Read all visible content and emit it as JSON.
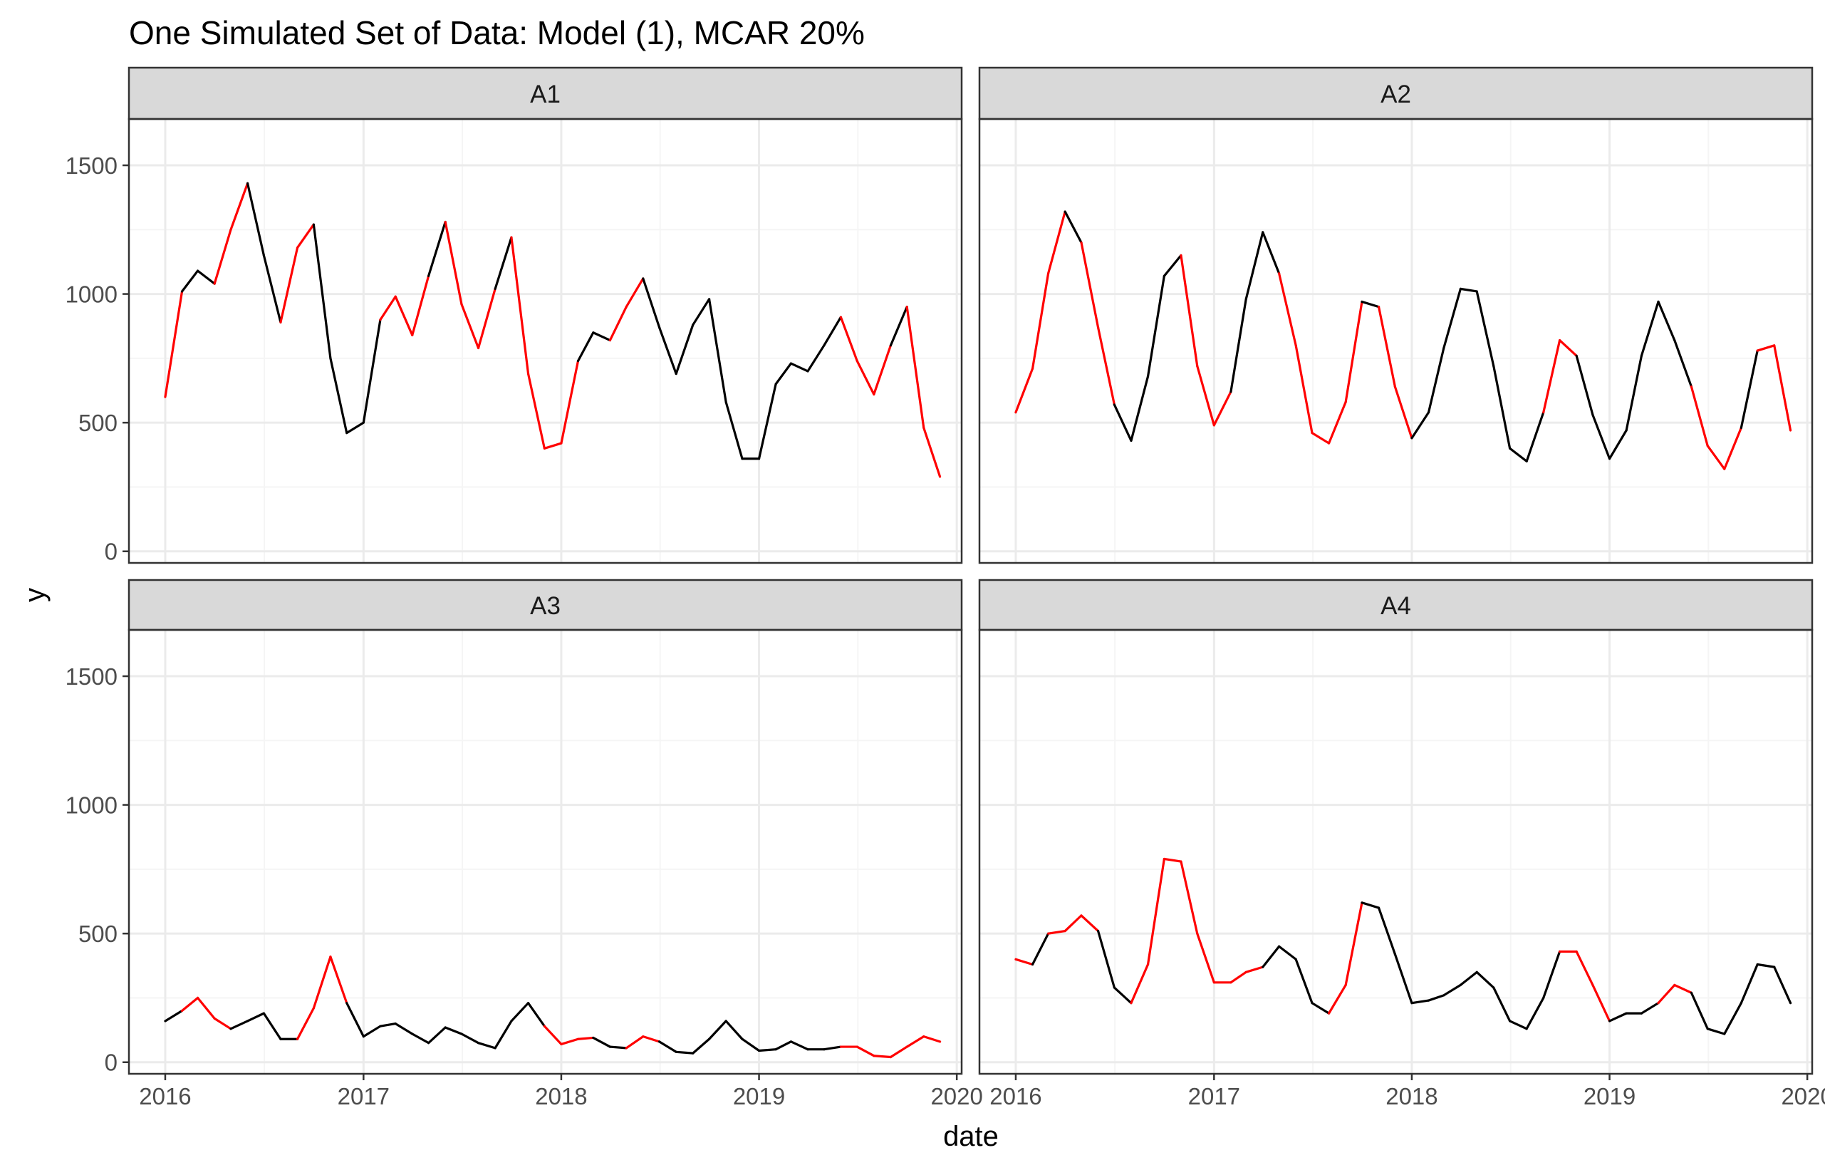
{
  "chart_data": {
    "type": "line",
    "title": "One Simulated Set of Data: Model (1), MCAR 20%",
    "xlabel": "date",
    "ylabel": "y",
    "x_ticks": [
      "2016",
      "2017",
      "2018",
      "2019",
      "2020"
    ],
    "y_ticks": [
      "0",
      "500",
      "1000",
      "1500"
    ],
    "ylim": [
      -45,
      1680
    ],
    "xlim": [
      "2015-10-26",
      "2020-01-10"
    ],
    "grid": true,
    "facet_layout": "2x2",
    "colors": {
      "observed": "#000000",
      "imputed": "#ff0000",
      "strip": "#d9d9d9",
      "grid_major": "#ebebeb",
      "grid_minor": "#f5f5f5"
    },
    "x": [
      "2016-01",
      "2016-02",
      "2016-03",
      "2016-04",
      "2016-05",
      "2016-06",
      "2016-07",
      "2016-08",
      "2016-09",
      "2016-10",
      "2016-11",
      "2016-12",
      "2017-01",
      "2017-02",
      "2017-03",
      "2017-04",
      "2017-05",
      "2017-06",
      "2017-07",
      "2017-08",
      "2017-09",
      "2017-10",
      "2017-11",
      "2017-12",
      "2018-01",
      "2018-02",
      "2018-03",
      "2018-04",
      "2018-05",
      "2018-06",
      "2018-07",
      "2018-08",
      "2018-09",
      "2018-10",
      "2018-11",
      "2018-12",
      "2019-01",
      "2019-02",
      "2019-03",
      "2019-04",
      "2019-05",
      "2019-06",
      "2019-07",
      "2019-08",
      "2019-09",
      "2019-10",
      "2019-11",
      "2019-12"
    ],
    "panels": [
      {
        "name": "A1",
        "values": [
          600,
          1010,
          1090,
          1040,
          1250,
          1430,
          1150,
          890,
          1180,
          1270,
          750,
          460,
          500,
          900,
          990,
          840,
          1070,
          1280,
          960,
          790,
          1020,
          1220,
          690,
          400,
          420,
          740,
          850,
          820,
          950,
          1060,
          870,
          690,
          880,
          980,
          580,
          360,
          360,
          650,
          730,
          700,
          800,
          910,
          740,
          610,
          800,
          950,
          480,
          290
        ],
        "imputed": [
          1,
          1,
          0,
          0,
          1,
          1,
          0,
          0,
          1,
          1,
          0,
          0,
          0,
          0,
          1,
          1,
          1,
          0,
          1,
          1,
          1,
          0,
          1,
          1,
          1,
          1,
          0,
          0,
          1,
          1,
          0,
          0,
          0,
          0,
          0,
          0,
          0,
          0,
          0,
          0,
          0,
          0,
          1,
          1,
          1,
          0,
          1,
          1
        ]
      },
      {
        "name": "A2",
        "values": [
          540,
          710,
          1080,
          1320,
          1200,
          870,
          570,
          430,
          680,
          1070,
          1150,
          720,
          490,
          620,
          980,
          1240,
          1080,
          800,
          460,
          420,
          580,
          970,
          950,
          640,
          440,
          540,
          790,
          1020,
          1010,
          720,
          400,
          350,
          540,
          820,
          760,
          530,
          360,
          470,
          760,
          970,
          820,
          640,
          410,
          320,
          480,
          780,
          800,
          470
        ],
        "imputed": [
          1,
          1,
          1,
          1,
          0,
          1,
          1,
          0,
          0,
          0,
          0,
          1,
          1,
          1,
          0,
          0,
          0,
          1,
          1,
          1,
          1,
          1,
          0,
          1,
          1,
          0,
          0,
          0,
          0,
          0,
          0,
          0,
          0,
          1,
          1,
          0,
          0,
          0,
          0,
          0,
          0,
          0,
          1,
          1,
          1,
          0,
          1,
          1
        ]
      },
      {
        "name": "A3",
        "values": [
          160,
          200,
          250,
          170,
          130,
          160,
          190,
          90,
          90,
          210,
          410,
          230,
          100,
          140,
          150,
          110,
          75,
          135,
          110,
          75,
          55,
          160,
          230,
          140,
          70,
          90,
          95,
          60,
          55,
          100,
          80,
          40,
          35,
          90,
          160,
          90,
          45,
          50,
          80,
          50,
          50,
          60,
          60,
          25,
          20,
          60,
          100,
          80
        ],
        "imputed": [
          0,
          0,
          1,
          1,
          1,
          0,
          0,
          0,
          0,
          1,
          1,
          1,
          0,
          0,
          0,
          0,
          0,
          0,
          0,
          0,
          0,
          0,
          0,
          0,
          1,
          1,
          1,
          0,
          0,
          1,
          1,
          0,
          0,
          0,
          0,
          0,
          0,
          0,
          0,
          0,
          0,
          0,
          1,
          1,
          1,
          1,
          1,
          1
        ]
      },
      {
        "name": "A4",
        "values": [
          400,
          380,
          500,
          510,
          570,
          510,
          290,
          230,
          380,
          790,
          780,
          500,
          310,
          310,
          350,
          370,
          450,
          400,
          230,
          190,
          300,
          620,
          600,
          420,
          230,
          240,
          260,
          300,
          350,
          290,
          160,
          130,
          250,
          430,
          430,
          300,
          160,
          190,
          190,
          230,
          300,
          270,
          130,
          110,
          230,
          380,
          370,
          230
        ],
        "imputed": [
          1,
          1,
          0,
          1,
          1,
          1,
          0,
          0,
          1,
          1,
          1,
          1,
          1,
          1,
          1,
          1,
          0,
          0,
          0,
          0,
          1,
          1,
          0,
          0,
          0,
          0,
          0,
          0,
          0,
          0,
          0,
          0,
          0,
          0,
          1,
          1,
          1,
          0,
          0,
          0,
          1,
          1,
          0,
          0,
          0,
          0,
          0,
          0
        ]
      }
    ]
  }
}
